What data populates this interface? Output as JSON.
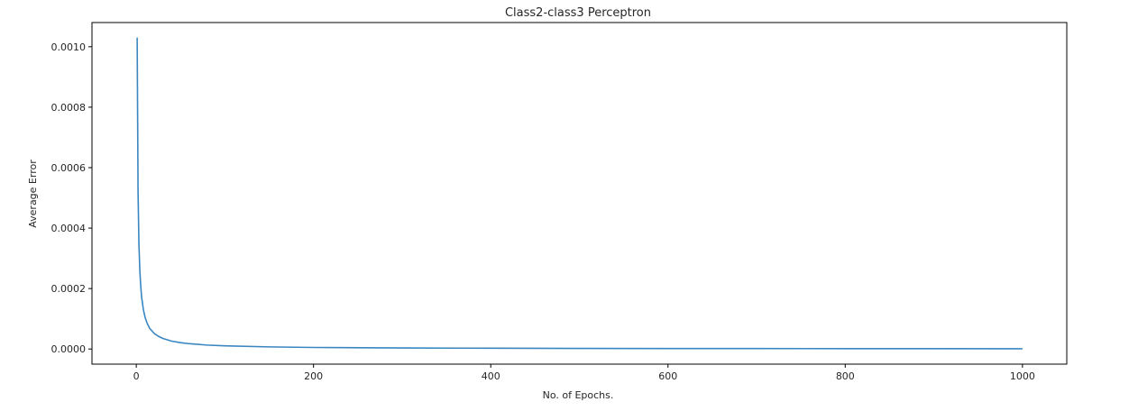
{
  "chart_data": {
    "type": "line",
    "title": "Class2-class3 Perceptron",
    "xlabel": "No. of Epochs.",
    "ylabel": "Average Error",
    "xlim": [
      -50,
      1050
    ],
    "ylim": [
      -5e-05,
      0.00108
    ],
    "xticks": [
      0,
      200,
      400,
      600,
      800,
      1000
    ],
    "xtick_labels": [
      "0",
      "200",
      "400",
      "600",
      "800",
      "1000"
    ],
    "yticks": [
      0,
      0.0002,
      0.0004,
      0.0006,
      0.0008,
      0.001
    ],
    "ytick_labels": [
      "0.0000",
      "0.0002",
      "0.0004",
      "0.0006",
      "0.0008",
      "0.0010"
    ],
    "grid": false,
    "line_color": "#3a86c0",
    "series": [
      {
        "x": [
          1,
          2,
          3,
          4,
          5,
          6,
          8,
          10,
          12,
          15,
          20,
          25,
          30,
          40,
          50,
          60,
          80,
          100,
          150,
          200,
          300,
          400,
          500,
          600,
          700,
          800,
          900,
          1000
        ],
        "values": [
          0.00103,
          0.00052,
          0.000345,
          0.00026,
          0.00021,
          0.000172,
          0.00013,
          0.000104,
          8.7e-05,
          6.9e-05,
          5.2e-05,
          4.2e-05,
          3.5e-05,
          2.6e-05,
          2.1e-05,
          1.75e-05,
          1.3e-05,
          1.05e-05,
          7e-06,
          5.2e-06,
          3.5e-06,
          2.6e-06,
          2.1e-06,
          1.7e-06,
          1.5e-06,
          1.3e-06,
          1.1e-06,
          1e-06
        ]
      }
    ]
  }
}
